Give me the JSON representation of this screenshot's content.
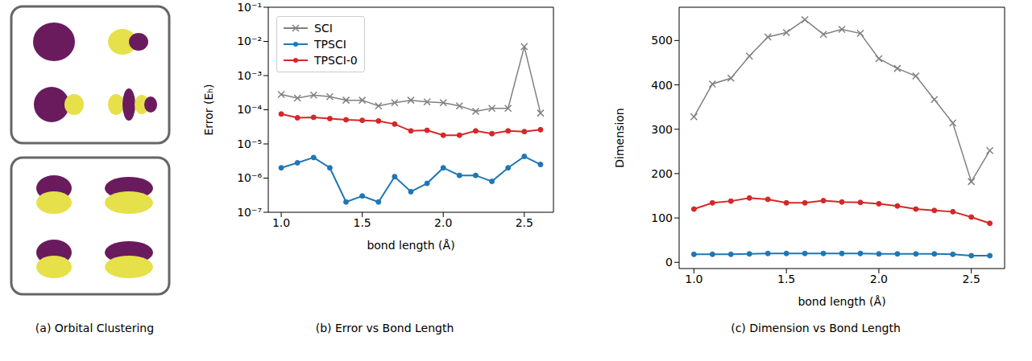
{
  "chart_data": [
    {
      "type": "image",
      "caption": "(a) Orbital Clustering"
    },
    {
      "type": "line",
      "caption": "(b) Error vs Bond Length",
      "x_label": "bond length (Å)",
      "y_label": "Error (Eₕ)",
      "x": [
        1.0,
        1.1,
        1.2,
        1.3,
        1.4,
        1.5,
        1.6,
        1.7,
        1.8,
        1.9,
        2.0,
        2.1,
        2.2,
        2.3,
        2.4,
        2.5,
        2.6
      ],
      "series": [
        {
          "name": "SCI",
          "color": "#808080",
          "marker": "x",
          "values": [
            0.00028,
            0.00022,
            0.00027,
            0.00024,
            0.00019,
            0.00019,
            0.00013,
            0.00016,
            0.00019,
            0.00017,
            0.00016,
            0.00013,
            9e-05,
            0.00011,
            0.00011,
            0.007,
            8e-05
          ]
        },
        {
          "name": "TPSCI",
          "color": "#1f77b4",
          "marker": "o",
          "values": [
            2e-06,
            2.8e-06,
            4e-06,
            2e-06,
            2e-07,
            3e-07,
            2e-07,
            1.1e-06,
            4e-07,
            7e-07,
            2e-06,
            1.2e-06,
            1.2e-06,
            8e-07,
            2e-06,
            4.3e-06,
            2.5e-06
          ]
        },
        {
          "name": "TPSCI-0",
          "color": "#d62728",
          "marker": "o",
          "values": [
            7.5e-05,
            5.8e-05,
            6e-05,
            5.5e-05,
            5.1e-05,
            4.9e-05,
            4.7e-05,
            3.8e-05,
            2.4e-05,
            2.5e-05,
            1.8e-05,
            1.8e-05,
            2.4e-05,
            2e-05,
            2.4e-05,
            2.3e-05,
            2.6e-05
          ]
        }
      ],
      "xlim": [
        0.92,
        2.68
      ],
      "xticks": [
        {
          "value": 1,
          "label": "1.0"
        },
        1.5,
        {
          "value": 2,
          "label": "2.0"
        },
        2.5
      ],
      "ylim": [
        1e-07,
        0.1
      ],
      "log": "y",
      "yticks": [
        {
          "value": 1e-07,
          "label": "10⁻⁷"
        },
        {
          "value": 1e-06,
          "label": "10⁻⁶"
        },
        {
          "value": 1e-05,
          "label": "10⁻⁵"
        },
        {
          "value": 0.0001,
          "label": "10⁻⁴"
        },
        {
          "value": 0.001,
          "label": "10⁻³"
        },
        {
          "value": 0.01,
          "label": "10⁻²"
        },
        {
          "value": 0.1,
          "label": "10⁻¹"
        }
      ],
      "legend": "upper left"
    },
    {
      "type": "line",
      "caption": "(c) Dimension vs Bond Length",
      "x_label": "bond length (Å)",
      "y_label": "Dimension",
      "x": [
        1.0,
        1.1,
        1.2,
        1.3,
        1.4,
        1.5,
        1.6,
        1.7,
        1.8,
        1.9,
        2.0,
        2.1,
        2.2,
        2.3,
        2.4,
        2.5,
        2.6
      ],
      "series": [
        {
          "name": "SCI",
          "color": "#808080",
          "marker": "x",
          "values": [
            328,
            402,
            415,
            465,
            508,
            518,
            547,
            514,
            525,
            516,
            459,
            437,
            420,
            367,
            314,
            182,
            252
          ]
        },
        {
          "name": "TPSCI",
          "color": "#1f77b4",
          "marker": "o",
          "values": [
            18,
            18,
            18,
            19,
            20,
            20,
            20,
            20,
            20,
            20,
            19,
            19,
            19,
            19,
            18,
            15,
            15
          ]
        },
        {
          "name": "TPSCI-0",
          "color": "#d62728",
          "marker": "o",
          "values": [
            120,
            134,
            138,
            145,
            142,
            134,
            134,
            139,
            136,
            135,
            132,
            127,
            120,
            117,
            114,
            102,
            88
          ]
        }
      ],
      "xlim": [
        0.92,
        2.68
      ],
      "xticks": [
        {
          "value": 1,
          "label": "1.0"
        },
        1.5,
        {
          "value": 2,
          "label": "2.0"
        },
        2.5
      ],
      "ylim": [
        -14,
        575
      ],
      "yticks": [
        0,
        100,
        200,
        300,
        400,
        500
      ]
    }
  ]
}
